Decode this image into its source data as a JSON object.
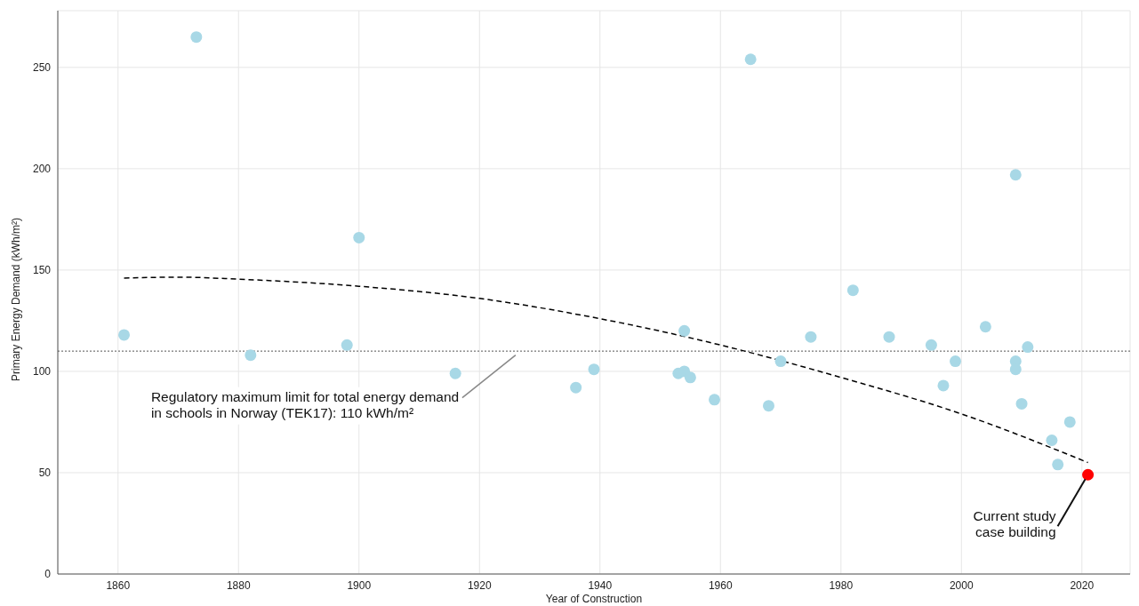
{
  "chart_data": {
    "type": "scatter",
    "xlabel": "Year of Construction",
    "ylabel": "Primary Energy Demand (kWh/m²)",
    "xlim": [
      1850,
      2028
    ],
    "xticks": [
      1860,
      1880,
      1900,
      1920,
      1940,
      1960,
      1980,
      2000,
      2020
    ],
    "ylim": [
      0,
      278
    ],
    "yticks": [
      0,
      50,
      100,
      150,
      200,
      250
    ],
    "grid": true,
    "marker": "circle",
    "legend": false,
    "series": [
      {
        "type": "scatter",
        "color": "#a8d8e6",
        "x": [
          1861,
          1873,
          1882,
          1898,
          1900,
          1916,
          1936,
          1939,
          1953,
          1954,
          1954,
          1955,
          1959,
          1965,
          1968,
          1970,
          1975,
          1982,
          1988,
          1995,
          1997,
          1999,
          2004,
          2009,
          2009,
          2009,
          2010,
          2011,
          2015,
          2016,
          2018
        ],
        "values": [
          118,
          265,
          108,
          113,
          166,
          99,
          92,
          101,
          99,
          120,
          100,
          97,
          86,
          254,
          83,
          105,
          117,
          140,
          117,
          113,
          93,
          105,
          122,
          197,
          105,
          101,
          84,
          112,
          66,
          54,
          75
        ]
      },
      {
        "type": "scatter",
        "color": "#ff0000",
        "x": [
          2021
        ],
        "values": [
          49
        ]
      },
      {
        "type": "line",
        "color": "#000000",
        "line_style": "dashed",
        "marker": "none",
        "x": [
          1861,
          1870,
          1880,
          1900,
          1920,
          1940,
          1960,
          1980,
          2000,
          2021
        ],
        "values": [
          146,
          146.5,
          145.5,
          142,
          136,
          126,
          113,
          97,
          79,
          55
        ]
      }
    ],
    "ref_lines": [
      {
        "axis": "y",
        "value": 110,
        "color": "#555555",
        "line_style": "dotted"
      }
    ],
    "annotations": [
      {
        "text": "Regulatory maximum limit for total energy demand\nin schools in Norway (TEK17): 110 kWh/m²",
        "x": 1926,
        "y": 108
      },
      {
        "text": "Current study\ncase building",
        "x": 2021,
        "y": 49
      }
    ]
  }
}
